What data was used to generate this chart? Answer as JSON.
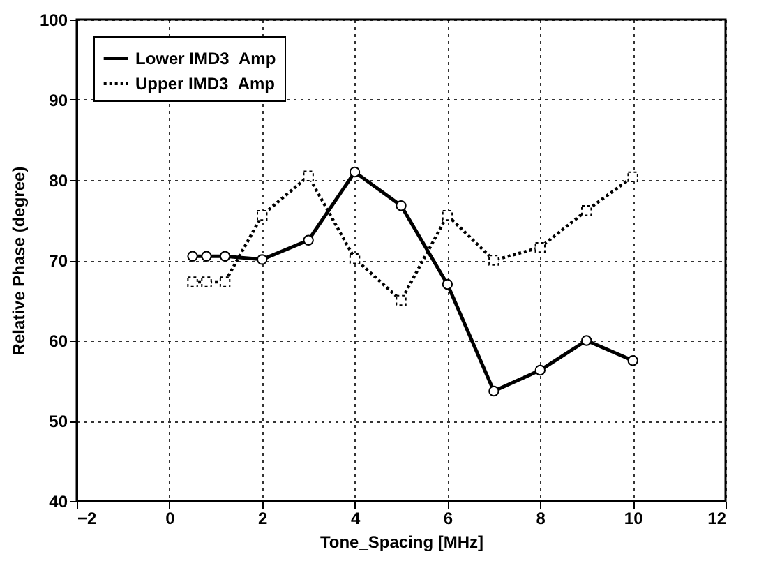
{
  "chart_data": {
    "type": "line",
    "xlabel": "Tone_Spacing [MHz]",
    "ylabel": "Relative Phase (degree)",
    "xlim": [
      -2,
      12
    ],
    "xticks": [
      -2,
      0,
      2,
      4,
      6,
      8,
      10,
      12
    ],
    "ylim": [
      40,
      100
    ],
    "yticks": [
      40,
      50,
      60,
      70,
      80,
      90,
      100
    ],
    "grid": true,
    "legend": "top left",
    "series": [
      {
        "name": "Lower IMD3_Amp",
        "color": "#000000",
        "marker": "circle",
        "line_style": "solid",
        "x": [
          0.5,
          0.8,
          1.2,
          2,
          3,
          4,
          5,
          6,
          7,
          8,
          9,
          10
        ],
        "values": [
          70.5,
          70.5,
          70.5,
          70.1,
          72.5,
          81,
          76.8,
          67,
          53.7,
          56.3,
          60,
          57.5
        ]
      },
      {
        "name": "Upper IMD3_Amp",
        "color": "#000000",
        "marker": "square",
        "line_style": "dotted",
        "x": [
          0.5,
          0.8,
          1.2,
          2,
          3,
          4,
          5,
          6,
          7,
          8,
          9,
          10
        ],
        "values": [
          67.3,
          67.3,
          67.3,
          75.6,
          80.5,
          70.2,
          65,
          75.6,
          70,
          71.6,
          76.2,
          80.4
        ]
      }
    ]
  }
}
